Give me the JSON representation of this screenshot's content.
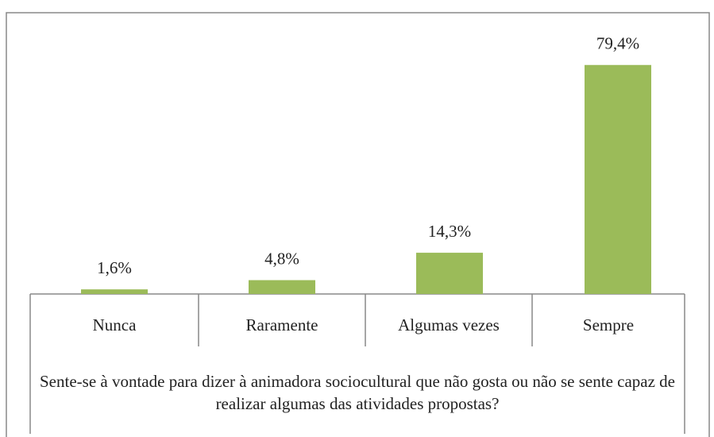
{
  "chart_data": {
    "type": "bar",
    "categories": [
      "Nunca",
      "Raramente",
      "Algumas vezes",
      "Sempre"
    ],
    "values": [
      1.6,
      4.8,
      14.3,
      79.4
    ],
    "value_labels": [
      "1,6%",
      "4,8%",
      "14,3%",
      "79,4%"
    ],
    "color": "#9bbb59",
    "x_label": "Sente-se à vontade para dizer à animadora sociocultural que não gosta ou não se sente capaz de realizar algumas das atividades propostas?"
  }
}
